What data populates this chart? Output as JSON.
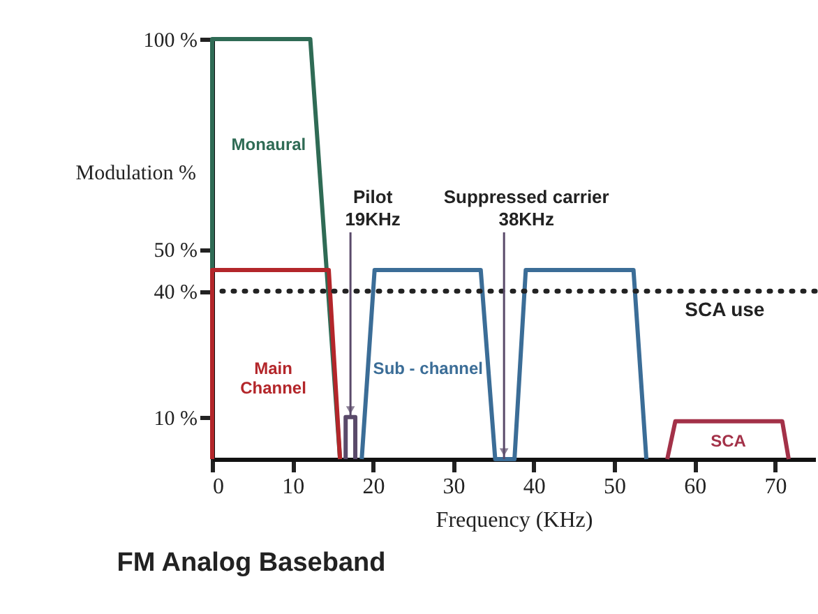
{
  "chart_data": {
    "type": "line",
    "title": "FM Analog Baseband",
    "xlabel": "Frequency (KHz)",
    "ylabel": "Modulation %",
    "xlim": [
      0,
      75
    ],
    "xticks": [
      0,
      10,
      20,
      30,
      40,
      50,
      60,
      70
    ],
    "ylim": [
      0,
      100
    ],
    "yticks": [
      {
        "value": 10,
        "label": "10 %"
      },
      {
        "value": 40,
        "label": "40 %"
      },
      {
        "value": 50,
        "label": "50 %"
      },
      {
        "value": 100,
        "label": "100 %"
      }
    ],
    "grid": false,
    "legend": false,
    "series": [
      {
        "name": "Monaural",
        "color": "#2f6b55",
        "x": [
          0,
          0,
          12.2,
          15.9
        ],
        "values": [
          0,
          100,
          100,
          0
        ]
      },
      {
        "name": "Main\nChannel",
        "color": "#b3262a",
        "x": [
          0,
          0,
          14.5,
          15.9
        ],
        "values": [
          0,
          45,
          45,
          0
        ]
      },
      {
        "color": "#5a4a6a",
        "x": [
          16.6,
          16.6,
          17.8,
          17.8
        ],
        "values": [
          0,
          10,
          10,
          0
        ]
      },
      {
        "name": "Sub - channel",
        "color": "#3b6d97",
        "x": [
          18.6,
          20.2,
          33.4,
          35.2,
          37.6,
          39,
          52.4,
          54
        ],
        "values": [
          0,
          45,
          45,
          0,
          0,
          45,
          45,
          0
        ]
      },
      {
        "name": "SCA",
        "color": "#a33148",
        "x": [
          56.6,
          57.6,
          70.9,
          71.7
        ],
        "values": [
          0,
          9,
          9,
          0
        ]
      }
    ],
    "ref_lines": [
      {
        "axis": "y",
        "value": 40,
        "label": "SCA use",
        "color": "#222222",
        "line_style": "dotted"
      }
    ],
    "annotations": [
      {
        "text": "Pilot\n19KHz",
        "x": 17.2,
        "y": 10
      },
      {
        "text": "Suppressed carrier\n38KHz",
        "x": 36.3,
        "y": 0
      }
    ]
  }
}
